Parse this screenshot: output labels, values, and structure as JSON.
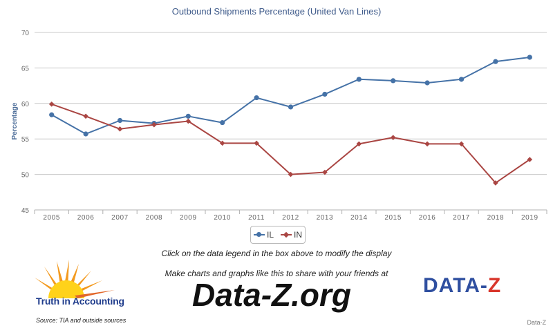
{
  "chart_data": {
    "type": "line",
    "title": "Outbound Shipments Percentage (United Van Lines)",
    "ylabel": "Percentage",
    "xlabel": "",
    "ylim": [
      45,
      70
    ],
    "yticks": [
      45,
      50,
      55,
      60,
      65,
      70
    ],
    "grid": true,
    "legend_position": "bottom-center",
    "categories": [
      "2005",
      "2006",
      "2007",
      "2008",
      "2009",
      "2010",
      "2011",
      "2012",
      "2013",
      "2014",
      "2015",
      "2016",
      "2017",
      "2018",
      "2019"
    ],
    "series": [
      {
        "name": "IL",
        "color": "#4572a7",
        "marker": "circle",
        "values": [
          58.4,
          55.7,
          57.6,
          57.2,
          58.2,
          57.3,
          60.8,
          59.5,
          61.3,
          63.4,
          63.2,
          62.9,
          63.4,
          65.9,
          66.5
        ]
      },
      {
        "name": "IN",
        "color": "#aa4643",
        "marker": "diamond",
        "values": [
          59.9,
          58.2,
          56.4,
          57.0,
          57.5,
          54.4,
          54.4,
          50.0,
          50.3,
          54.3,
          55.2,
          54.3,
          54.3,
          48.8,
          52.1
        ]
      }
    ]
  },
  "notes": {
    "legend_hint": "Click on the data legend in the box above to modify the display",
    "share_hint": "Make charts and graphs like this to share with your friends at",
    "site": "Data-Z.org"
  },
  "branding": {
    "tia_name": "Truth in Accounting",
    "source": "Source: TIA and outside sources",
    "dataz_logo_left": "DATA-",
    "dataz_logo_right": "Z",
    "credit": "Data-Z"
  }
}
